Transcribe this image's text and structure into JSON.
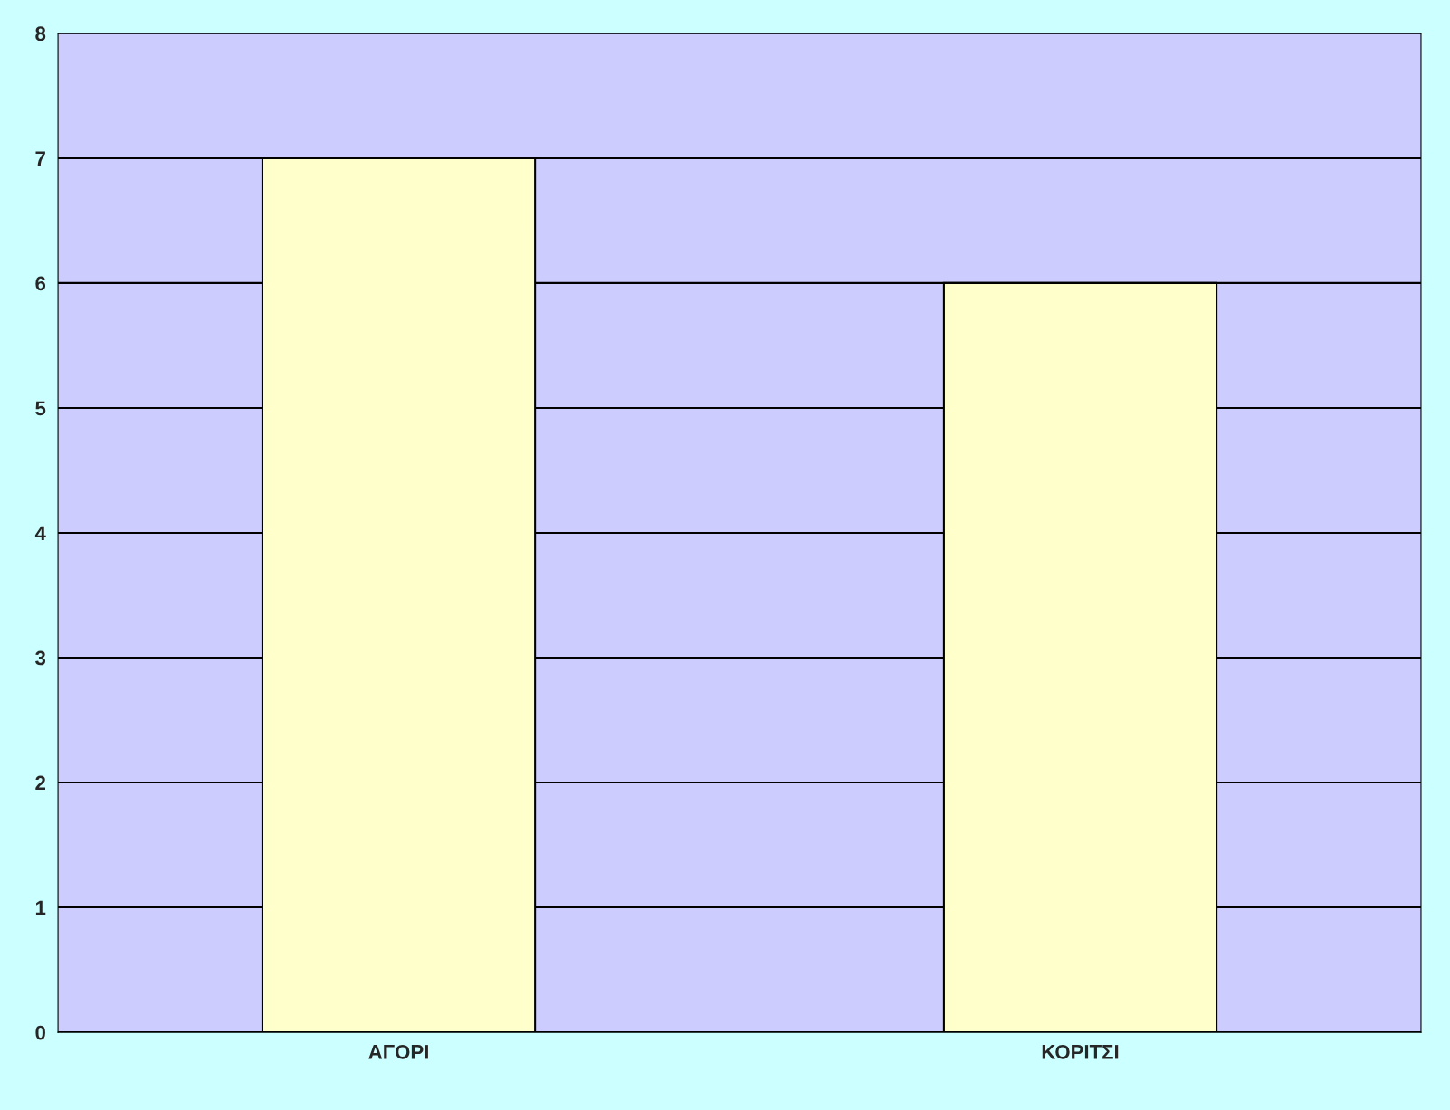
{
  "chart_data": {
    "type": "bar",
    "categories": [
      "ΑΓΟΡΙ",
      "ΚΟΡΙΤΣΙ"
    ],
    "values": [
      7,
      6
    ],
    "color": "#ffffcc",
    "ylim": [
      0,
      8
    ],
    "yticks": [
      0,
      1,
      2,
      3,
      4,
      5,
      6,
      7,
      8
    ],
    "grid": "y",
    "legend": false
  }
}
